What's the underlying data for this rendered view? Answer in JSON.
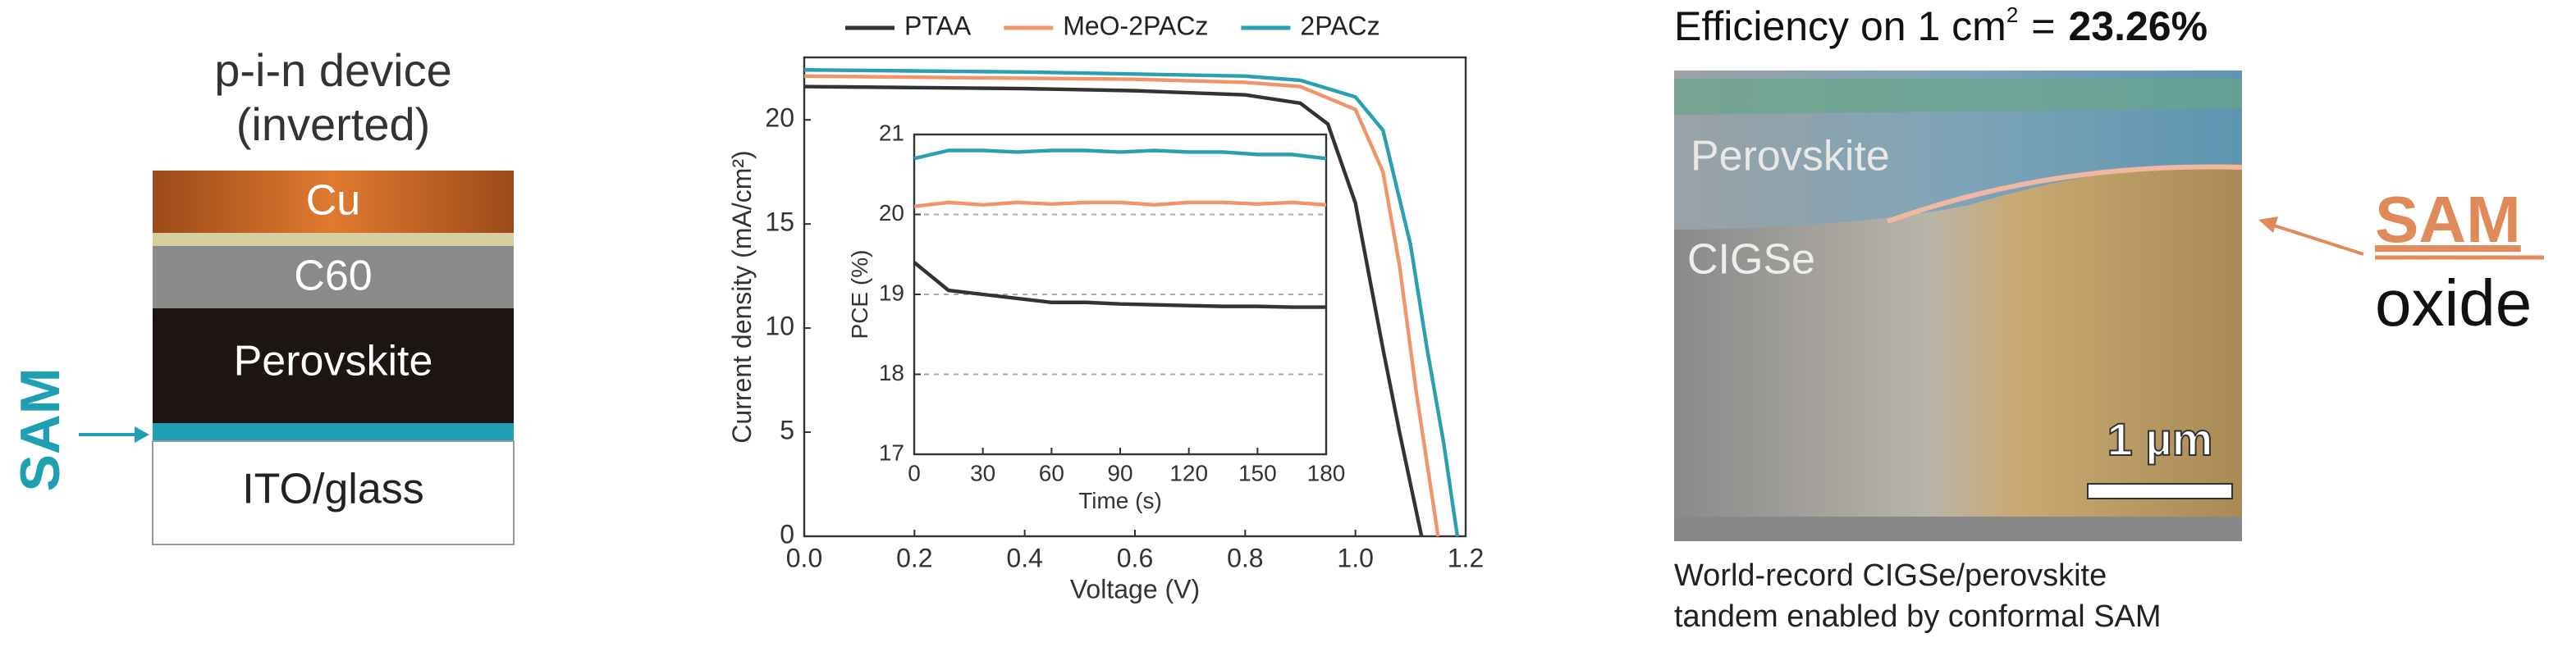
{
  "device": {
    "title": [
      "p-i-n device",
      "(inverted)"
    ],
    "layers": [
      "Cu",
      "C60",
      "Perovskite",
      "ITO/glass"
    ],
    "sam_label": "SAM"
  },
  "chart_data": {
    "type": "line",
    "xlabel": "Voltage (V)",
    "ylabel": "Current density (mA/cm²)",
    "xlim": [
      0,
      1.2
    ],
    "xticks": [
      {
        "value": 0,
        "label": "0.0"
      },
      0.2,
      0.4,
      0.6,
      0.8,
      {
        "value": 1,
        "label": "1.0"
      },
      1.2
    ],
    "ylim": [
      0,
      23
    ],
    "yticks": [
      0,
      5,
      10,
      15,
      20
    ],
    "legend": "top",
    "series": [
      {
        "name": "PTAA",
        "color": "#333333",
        "x": [
          0,
          0.2,
          0.4,
          0.6,
          0.8,
          0.9,
          0.95,
          1.0,
          1.05,
          1.08,
          1.1,
          1.12
        ],
        "values": [
          21.6,
          21.55,
          21.5,
          21.4,
          21.2,
          20.8,
          19.8,
          16,
          9,
          5,
          2.5,
          0
        ]
      },
      {
        "name": "MeO-2PACz",
        "color": "#f0956a",
        "x": [
          0,
          0.2,
          0.4,
          0.6,
          0.8,
          0.9,
          1.0,
          1.05,
          1.08,
          1.11,
          1.13,
          1.15
        ],
        "values": [
          22.1,
          22.05,
          22,
          21.95,
          21.8,
          21.6,
          20.5,
          17.5,
          13,
          7,
          3.5,
          0
        ]
      },
      {
        "name": "2PACz",
        "color": "#2a9fb0",
        "x": [
          0,
          0.2,
          0.4,
          0.6,
          0.8,
          0.9,
          1.0,
          1.05,
          1.1,
          1.13,
          1.16,
          1.185
        ],
        "values": [
          22.4,
          22.35,
          22.3,
          22.2,
          22.1,
          21.9,
          21.1,
          19.5,
          14,
          9,
          4.5,
          0
        ]
      }
    ],
    "inset": {
      "type": "line",
      "xlabel": "Time (s)",
      "ylabel": "PCE (%)",
      "xlim": [
        0,
        180
      ],
      "xticks": [
        0,
        30,
        60,
        90,
        120,
        150,
        180
      ],
      "ylim": [
        17,
        21
      ],
      "yticks": [
        17,
        18,
        19,
        20,
        21
      ],
      "grid": true,
      "series": [
        {
          "color": "#333333",
          "x": [
            0,
            15,
            30,
            45,
            60,
            75,
            90,
            105,
            120,
            135,
            150,
            165,
            180
          ],
          "values": [
            19.4,
            19.05,
            19.0,
            18.95,
            18.9,
            18.9,
            18.88,
            18.87,
            18.86,
            18.85,
            18.85,
            18.84,
            18.84
          ]
        },
        {
          "color": "#f0956a",
          "x": [
            0,
            15,
            30,
            45,
            60,
            75,
            90,
            105,
            120,
            135,
            150,
            165,
            180
          ],
          "values": [
            20.1,
            20.15,
            20.12,
            20.15,
            20.13,
            20.15,
            20.15,
            20.12,
            20.15,
            20.15,
            20.13,
            20.15,
            20.12
          ]
        },
        {
          "color": "#2a9fb0",
          "x": [
            0,
            15,
            30,
            45,
            60,
            75,
            90,
            105,
            120,
            135,
            150,
            165,
            180
          ],
          "values": [
            20.7,
            20.8,
            20.8,
            20.78,
            20.8,
            20.8,
            20.78,
            20.8,
            20.78,
            20.78,
            20.75,
            20.75,
            20.7
          ]
        }
      ]
    }
  },
  "sem": {
    "heading_prefix": "Efficiency on 1 cm",
    "heading_sup": "2",
    "heading_eq": "=",
    "heading_value": "23.26%",
    "labels": [
      "Perovskite",
      "CIGSe"
    ],
    "scale_bar": "1 µm",
    "arrow_label": [
      "SAM",
      "oxide"
    ],
    "caption": [
      "World-record CIGSe/perovskite",
      "tandem enabled by conformal SAM"
    ]
  }
}
